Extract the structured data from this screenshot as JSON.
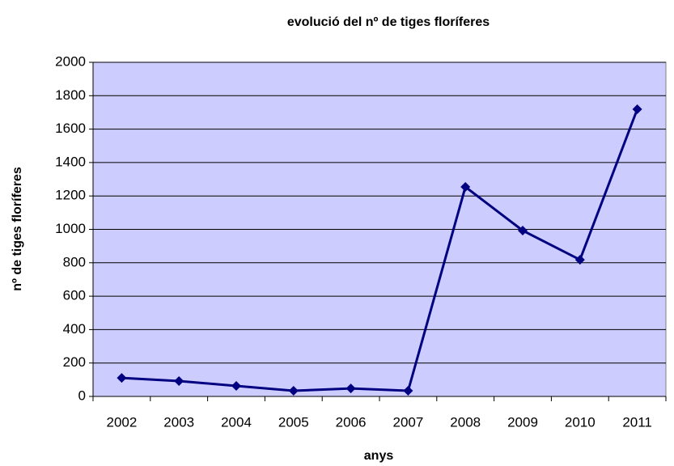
{
  "chart_data": {
    "type": "line",
    "title": "evolució del nº de tiges floríferes",
    "x_label": "anys",
    "y_label": "nº de tiges floríferes",
    "categories": [
      "2002",
      "2003",
      "2004",
      "2005",
      "2006",
      "2007",
      "2008",
      "2009",
      "2010",
      "2011"
    ],
    "series": [
      {
        "name": "nº de tiges floríferes",
        "color": "#000080",
        "values": [
          111,
          92,
          63,
          34,
          48,
          34,
          1254,
          993,
          818,
          1719
        ]
      }
    ],
    "ylim": [
      0,
      2000
    ],
    "yticks": [
      0,
      200,
      400,
      600,
      800,
      1000,
      1200,
      1400,
      1600,
      1800,
      2000
    ],
    "grid": true,
    "plot_background": "#ccccff"
  }
}
